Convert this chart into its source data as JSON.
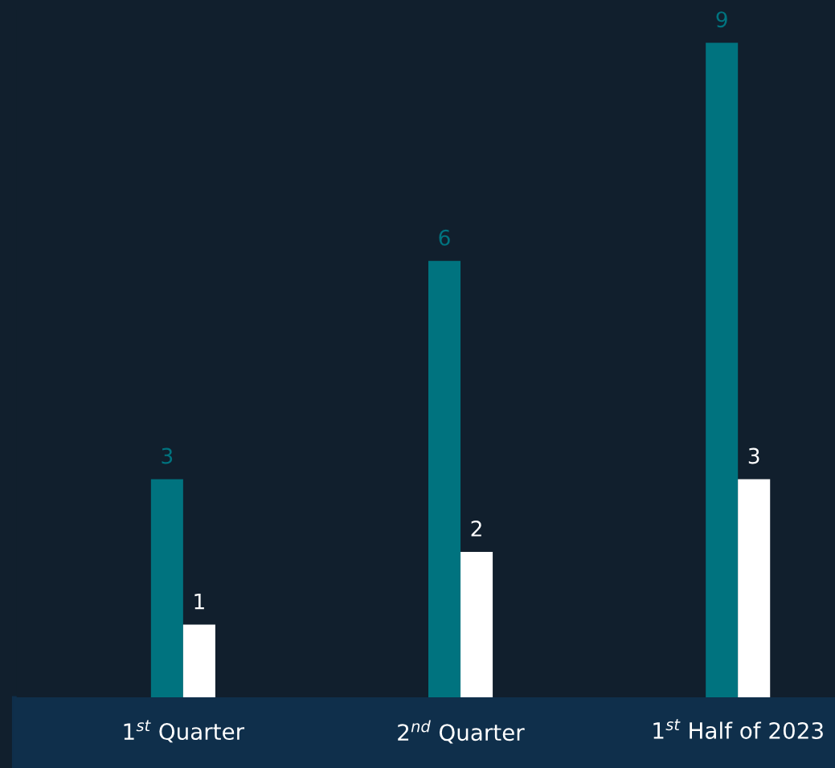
{
  "chart_data": {
    "type": "bar",
    "categories": [
      "1$^{st}$ Quarter",
      "2$^{nd}$ Quarter",
      "1$^{st}$ Half of 2023"
    ],
    "series": [
      {
        "color": "#00737f",
        "values": [
          3,
          6,
          9
        ]
      },
      {
        "color": "#ffffff",
        "values": [
          1,
          2,
          3
        ]
      }
    ],
    "data_labels": true,
    "grid": false,
    "legend": false
  }
}
